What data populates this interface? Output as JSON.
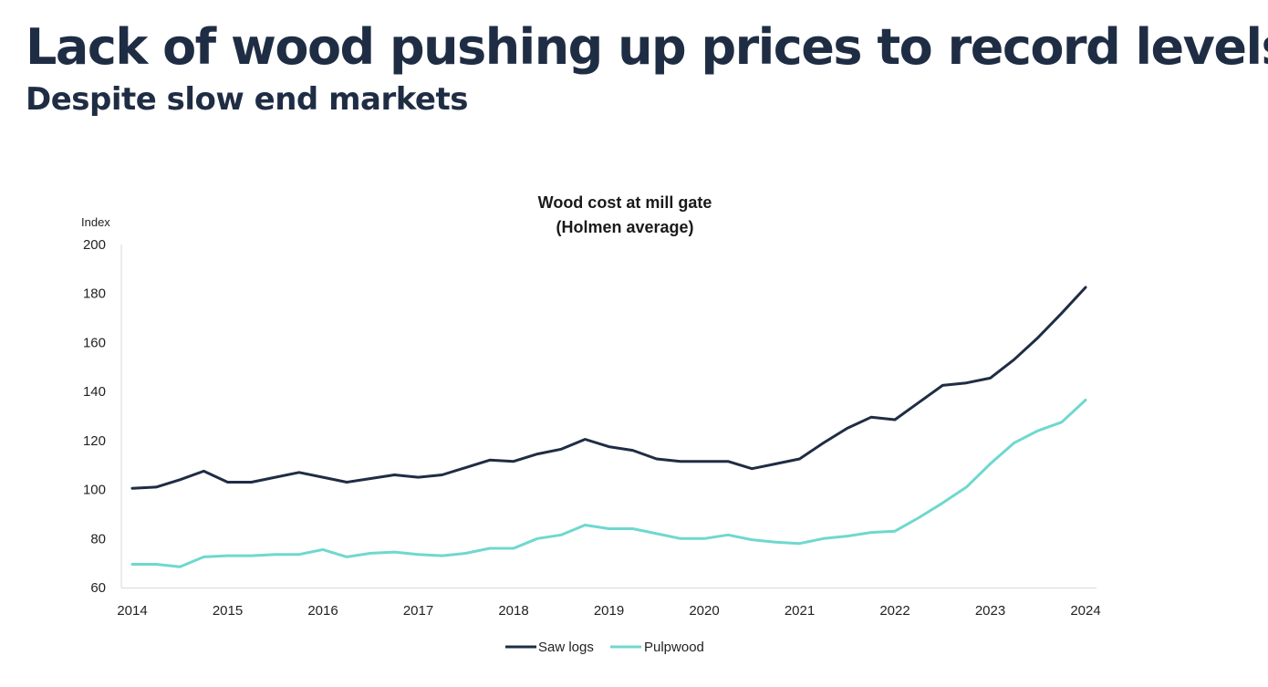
{
  "headline": "Lack of wood pushing up prices to record levels",
  "subheadline": "Despite slow end markets",
  "chart_data": {
    "type": "line",
    "title_lines": [
      "Wood cost at mill gate",
      "(Holmen average)"
    ],
    "ylabel": "Index",
    "xlabel": "",
    "ylim": [
      60,
      200
    ],
    "y_ticks": [
      60,
      80,
      100,
      120,
      140,
      160,
      180,
      200
    ],
    "xlim": [
      2014,
      2024
    ],
    "x_ticks": [
      2014,
      2015,
      2016,
      2017,
      2018,
      2019,
      2020,
      2021,
      2022,
      2023,
      2024
    ],
    "grid": false,
    "legend_position": "bottom",
    "series": [
      {
        "name": "Saw logs",
        "color": "#1f2d44",
        "x": [
          2014,
          2014.25,
          2014.5,
          2014.75,
          2015,
          2015.25,
          2015.5,
          2015.75,
          2016,
          2016.25,
          2016.5,
          2016.75,
          2017,
          2017.25,
          2017.5,
          2017.75,
          2018,
          2018.25,
          2018.5,
          2018.75,
          2019,
          2019.25,
          2019.5,
          2019.75,
          2020,
          2020.25,
          2020.5,
          2020.75,
          2021,
          2021.25,
          2021.5,
          2021.75,
          2022,
          2022.25,
          2022.5,
          2022.75,
          2023,
          2023.25,
          2023.5,
          2023.75,
          2024
        ],
        "values": [
          100.5,
          101,
          104,
          107.5,
          103,
          103,
          105,
          107,
          105,
          103,
          104.5,
          106,
          105,
          106,
          109,
          112,
          111.5,
          114.5,
          116.5,
          120.5,
          117.5,
          116,
          112.5,
          111.5,
          111.5,
          111.5,
          108.5,
          110.5,
          112.5,
          119,
          125,
          129.5,
          128.5,
          135.5,
          142.5,
          143.5,
          145.5,
          153,
          162,
          172,
          182.5
        ]
      },
      {
        "name": "Pulpwood",
        "color": "#6fd8cf",
        "x": [
          2014,
          2014.25,
          2014.5,
          2014.75,
          2015,
          2015.25,
          2015.5,
          2015.75,
          2016,
          2016.25,
          2016.5,
          2016.75,
          2017,
          2017.25,
          2017.5,
          2017.75,
          2018,
          2018.25,
          2018.5,
          2018.75,
          2019,
          2019.25,
          2019.5,
          2019.75,
          2020,
          2020.25,
          2020.5,
          2020.75,
          2021,
          2021.25,
          2021.5,
          2021.75,
          2022,
          2022.25,
          2022.5,
          2022.75,
          2023,
          2023.25,
          2023.5,
          2023.75,
          2024
        ],
        "values": [
          69.5,
          69.5,
          68.5,
          72.5,
          73,
          73,
          73.5,
          73.5,
          75.5,
          72.5,
          74,
          74.5,
          73.5,
          73,
          74,
          76,
          76,
          80,
          81.5,
          85.5,
          84,
          84,
          82,
          80,
          80,
          81.5,
          79.5,
          78.5,
          78,
          80,
          81,
          82.5,
          83,
          88.5,
          94.5,
          101,
          110.5,
          119,
          124,
          127.5,
          136.5
        ]
      }
    ]
  }
}
